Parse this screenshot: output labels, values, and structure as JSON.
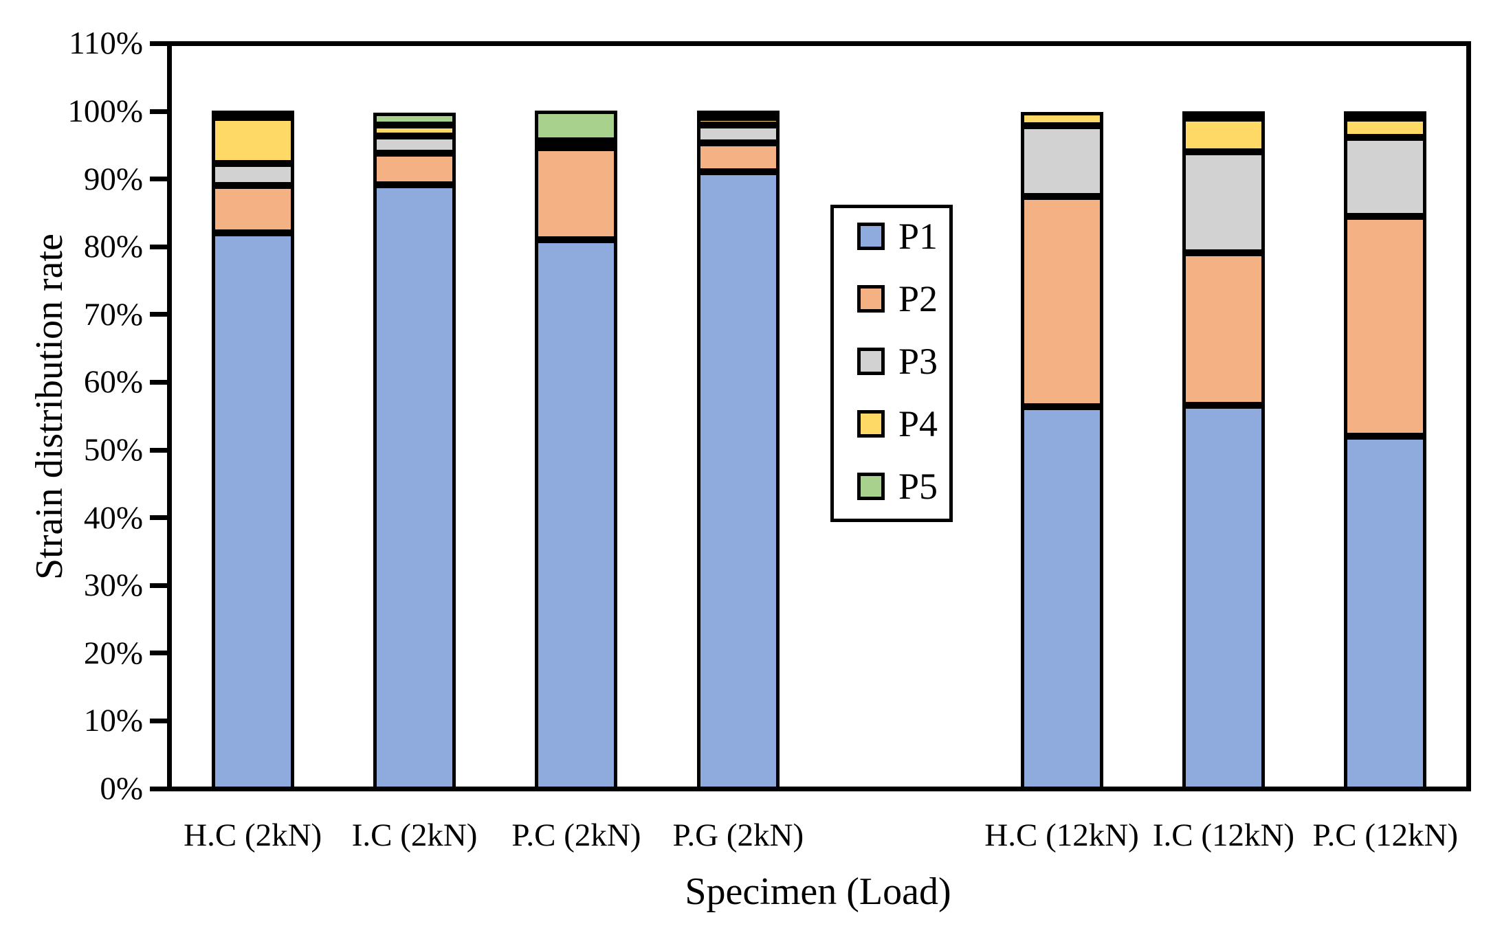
{
  "chart_data": {
    "type": "bar",
    "stacked": true,
    "xlabel": "Specimen (Load)",
    "ylabel": "Strain distribution rate",
    "ylim": [
      0,
      110
    ],
    "ytick_step": 10,
    "ytick_labels": [
      "0%",
      "10%",
      "20%",
      "30%",
      "40%",
      "50%",
      "60%",
      "70%",
      "80%",
      "90%",
      "100%",
      "110%"
    ],
    "grid": "off",
    "legend_position": "inside-center",
    "num_slots": 8,
    "categories": [
      {
        "label": "H.C (2kN)",
        "slot": 0
      },
      {
        "label": "I.C (2kN)",
        "slot": 1
      },
      {
        "label": "P.C (2kN)",
        "slot": 2
      },
      {
        "label": "P.G (2kN)",
        "slot": 3
      },
      {
        "label": "H.C (12kN)",
        "slot": 5
      },
      {
        "label": "I.C (12kN)",
        "slot": 6
      },
      {
        "label": "P.C (12kN)",
        "slot": 7
      }
    ],
    "series": [
      {
        "name": "P1",
        "color": "#8FAADC",
        "values": [
          82.3,
          89.4,
          81.2,
          91.3,
          56.6,
          56.8,
          52.2
        ]
      },
      {
        "name": "P2",
        "color": "#F4B183",
        "values": [
          7.0,
          4.7,
          13.6,
          4.3,
          31.0,
          22.5,
          32.5
        ]
      },
      {
        "name": "P3",
        "color": "#D2D2D2",
        "values": [
          3.2,
          2.5,
          0,
          2.6,
          10.4,
          14.9,
          11.7
        ]
      },
      {
        "name": "P4",
        "color": "#FFD966",
        "values": [
          6.8,
          1.6,
          0.7,
          1.1,
          2.0,
          5.0,
          2.8
        ]
      },
      {
        "name": "P5",
        "color": "#A9D18E",
        "values": [
          0.7,
          1.8,
          4.5,
          0.7,
          0,
          0.8,
          0.8
        ]
      }
    ],
    "colors": {
      "bar_border": "#000000",
      "axis": "#000000",
      "background": "#ffffff"
    }
  }
}
